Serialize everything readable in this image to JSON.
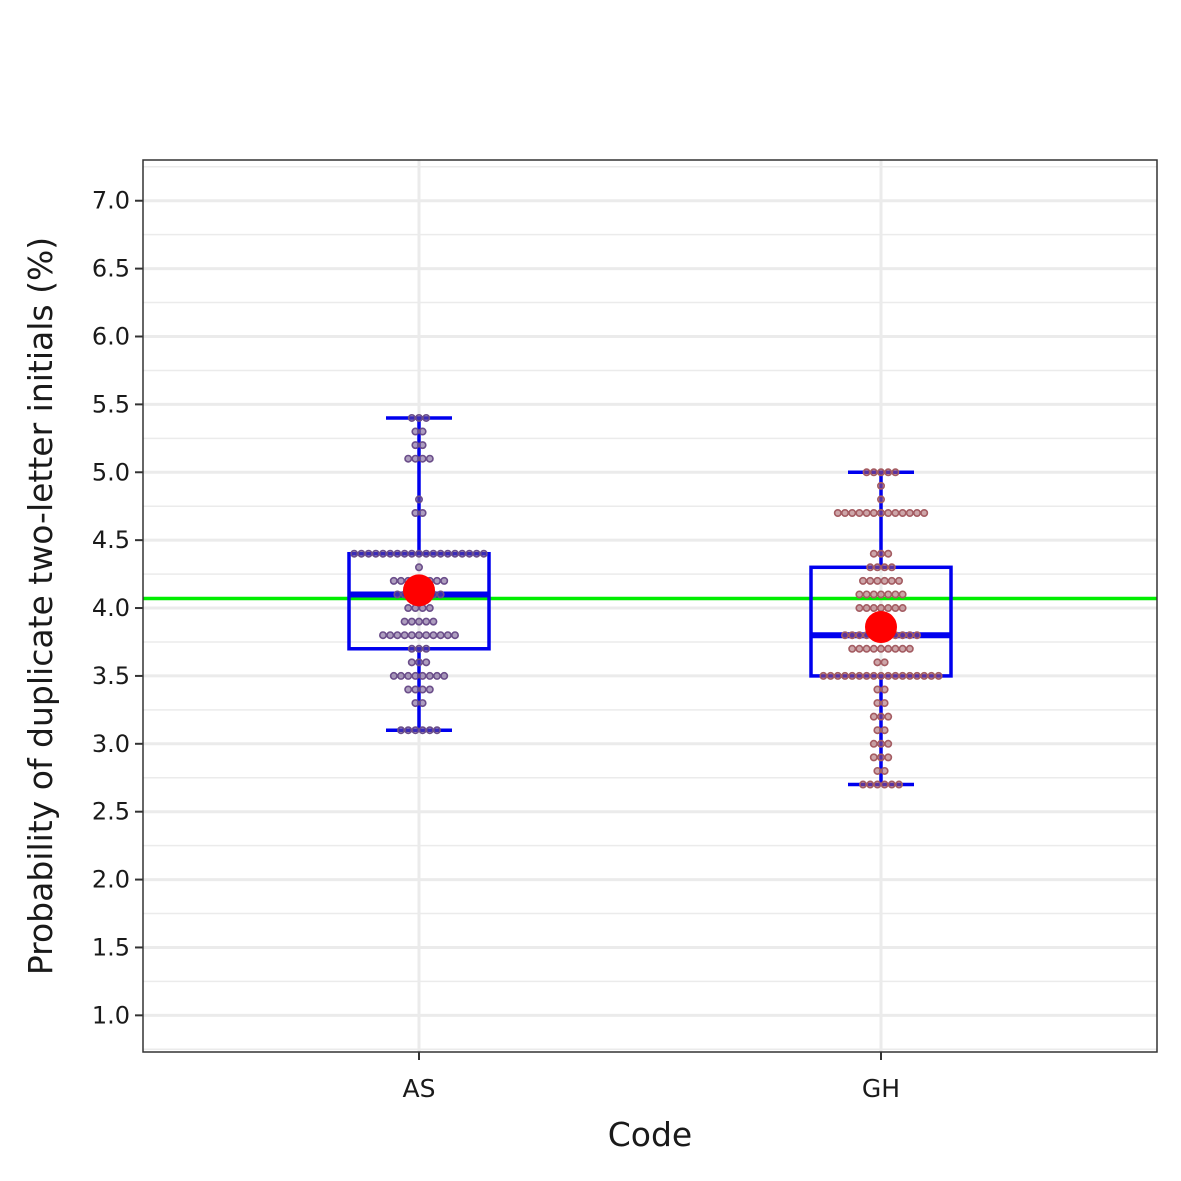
{
  "chart_data": {
    "type": "box",
    "title": "",
    "xlabel": "Code",
    "ylabel": "Probability of duplicate two-letter initials (%)",
    "categories": [
      "AS",
      "GH"
    ],
    "ylim": [
      0.73,
      7.3
    ],
    "yticks": [
      1.0,
      1.5,
      2.0,
      2.5,
      3.0,
      3.5,
      4.0,
      4.5,
      5.0,
      5.5,
      6.0,
      6.5,
      7.0
    ],
    "ytick_labels": [
      "1.0",
      "1.5",
      "2.0",
      "2.5",
      "3.0",
      "3.5",
      "4.0",
      "4.5",
      "5.0",
      "5.5",
      "6.0",
      "6.5",
      "7.0"
    ],
    "grid": true,
    "reference_line": {
      "y": 4.07,
      "color": "#00ee00"
    },
    "boxes": [
      {
        "category": "AS",
        "min": 3.1,
        "q1": 3.7,
        "median": 4.1,
        "q3": 4.4,
        "max": 5.4,
        "mean": 4.13,
        "dot_color": "#6b4e8a",
        "dots": [
          {
            "y": 5.4,
            "n": 3
          },
          {
            "y": 5.3,
            "n": 2
          },
          {
            "y": 5.2,
            "n": 2
          },
          {
            "y": 5.1,
            "n": 4
          },
          {
            "y": 4.8,
            "n": 1
          },
          {
            "y": 4.7,
            "n": 2
          },
          {
            "y": 4.4,
            "n": 19
          },
          {
            "y": 4.3,
            "n": 1
          },
          {
            "y": 4.2,
            "n": 8
          },
          {
            "y": 4.1,
            "n": 7
          },
          {
            "y": 4.0,
            "n": 4
          },
          {
            "y": 3.9,
            "n": 5
          },
          {
            "y": 3.8,
            "n": 11
          },
          {
            "y": 3.7,
            "n": 3
          },
          {
            "y": 3.6,
            "n": 3
          },
          {
            "y": 3.5,
            "n": 8
          },
          {
            "y": 3.4,
            "n": 4
          },
          {
            "y": 3.3,
            "n": 2
          },
          {
            "y": 3.1,
            "n": 6
          }
        ]
      },
      {
        "category": "GH",
        "min": 2.7,
        "q1": 3.5,
        "median": 3.8,
        "q3": 4.3,
        "max": 5.0,
        "mean": 3.86,
        "dot_color": "#a45c62",
        "dots": [
          {
            "y": 5.0,
            "n": 5
          },
          {
            "y": 4.9,
            "n": 1
          },
          {
            "y": 4.8,
            "n": 1
          },
          {
            "y": 4.7,
            "n": 13
          },
          {
            "y": 4.4,
            "n": 3
          },
          {
            "y": 4.3,
            "n": 4
          },
          {
            "y": 4.2,
            "n": 6
          },
          {
            "y": 4.1,
            "n": 7
          },
          {
            "y": 4.0,
            "n": 7
          },
          {
            "y": 3.9,
            "n": 4
          },
          {
            "y": 3.8,
            "n": 11
          },
          {
            "y": 3.7,
            "n": 9
          },
          {
            "y": 3.6,
            "n": 2
          },
          {
            "y": 3.5,
            "n": 17
          },
          {
            "y": 3.4,
            "n": 2
          },
          {
            "y": 3.3,
            "n": 2
          },
          {
            "y": 3.2,
            "n": 3
          },
          {
            "y": 3.1,
            "n": 2
          },
          {
            "y": 3.0,
            "n": 3
          },
          {
            "y": 2.9,
            "n": 3
          },
          {
            "y": 2.8,
            "n": 2
          },
          {
            "y": 2.7,
            "n": 6
          }
        ]
      }
    ],
    "colors": {
      "box": "#0000ee",
      "mean": "#ff0000",
      "grid": "#ebebeb",
      "panel_border": "#333333"
    }
  }
}
